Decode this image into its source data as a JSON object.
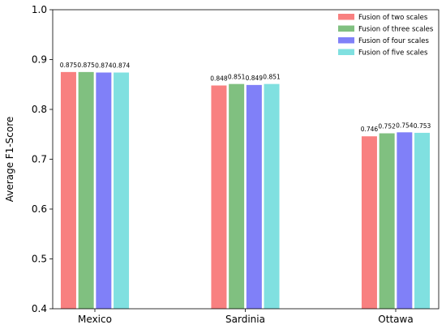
{
  "chart_data": {
    "type": "bar",
    "title": "",
    "xlabel": "",
    "ylabel": "Average F1-Score",
    "ylim": [
      0.4,
      1.0
    ],
    "yticks": [
      "0.4",
      "0.5",
      "0.6",
      "0.7",
      "0.8",
      "0.9",
      "1.0"
    ],
    "categories": [
      "Mexico",
      "Sardinia",
      "Ottawa"
    ],
    "series": [
      {
        "name": "Fusion of two scales",
        "color": "#f88080",
        "values": [
          0.875,
          0.848,
          0.746
        ],
        "labels": [
          "0.875",
          "0.848",
          "0.746"
        ]
      },
      {
        "name": "Fusion of three scales",
        "color": "#80c080",
        "values": [
          0.875,
          0.851,
          0.752
        ],
        "labels": [
          "0.875",
          "0.851",
          "0.752"
        ]
      },
      {
        "name": "Fusion of four scales",
        "color": "#8080f8",
        "values": [
          0.874,
          0.849,
          0.754
        ],
        "labels": [
          "0.874",
          "0.849",
          "0.754"
        ]
      },
      {
        "name": "Fusion of five scales",
        "color": "#80e0e0",
        "values": [
          0.874,
          0.851,
          0.753
        ],
        "labels": [
          "0.874",
          "0.851",
          "0.753"
        ]
      }
    ],
    "grid": false,
    "legend_position": "top-right"
  }
}
